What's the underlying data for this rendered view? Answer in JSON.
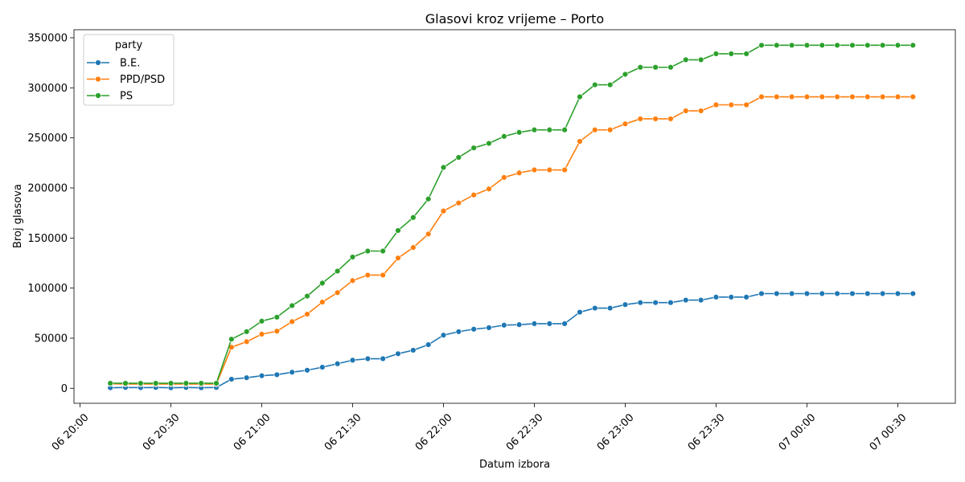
{
  "chart_data": {
    "type": "line",
    "title": "Glasovi kroz vrijeme – Porto",
    "xlabel": "Datum izbora",
    "ylabel": "Broj glasova",
    "x_range": [
      "06 19:58",
      "07 00:49"
    ],
    "ylim": [
      -15000,
      358000
    ],
    "x_ticks": [
      {
        "time": "06 20:00",
        "label": "06 20:00"
      },
      {
        "time": "06 20:30",
        "label": "06 20:30"
      },
      {
        "time": "06 21:00",
        "label": "06 21:00"
      },
      {
        "time": "06 21:30",
        "label": "06 21:30"
      },
      {
        "time": "06 22:00",
        "label": "06 22:00"
      },
      {
        "time": "06 22:30",
        "label": "06 22:30"
      },
      {
        "time": "06 23:00",
        "label": "06 23:00"
      },
      {
        "time": "06 23:30",
        "label": "06 23:30"
      },
      {
        "time": "07 00:00",
        "label": "07 00:00"
      },
      {
        "time": "07 00:30",
        "label": "07 00:30"
      }
    ],
    "y_ticks": [
      0,
      50000,
      100000,
      150000,
      200000,
      250000,
      300000,
      350000
    ],
    "legend": {
      "title": "party",
      "position": "top-left"
    },
    "x": [
      "06 20:10",
      "06 20:15",
      "06 20:20",
      "06 20:25",
      "06 20:30",
      "06 20:35",
      "06 20:40",
      "06 20:45",
      "06 20:50",
      "06 20:55",
      "06 21:00",
      "06 21:05",
      "06 21:10",
      "06 21:15",
      "06 21:20",
      "06 21:25",
      "06 21:30",
      "06 21:35",
      "06 21:40",
      "06 21:45",
      "06 21:50",
      "06 21:55",
      "06 22:00",
      "06 22:05",
      "06 22:10",
      "06 22:15",
      "06 22:20",
      "06 22:25",
      "06 22:30",
      "06 22:35",
      "06 22:40",
      "06 22:45",
      "06 22:50",
      "06 22:55",
      "06 23:00",
      "06 23:05",
      "06 23:10",
      "06 23:15",
      "06 23:20",
      "06 23:25",
      "06 23:30",
      "06 23:35",
      "06 23:40",
      "06 23:45",
      "06 23:50",
      "06 23:55",
      "07 00:00",
      "07 00:05",
      "07 00:10",
      "07 00:15",
      "07 00:20",
      "07 00:25",
      "07 00:30",
      "07 00:35"
    ],
    "series": [
      {
        "name": "B.E.",
        "color": "#1f77b4",
        "values": [
          500,
          800,
          600,
          800,
          500,
          800,
          500,
          800,
          9000,
          10500,
          12500,
          13500,
          16000,
          18000,
          21000,
          24500,
          28000,
          29500,
          29500,
          34500,
          38000,
          43500,
          53000,
          56500,
          59000,
          60500,
          63000,
          63500,
          64500,
          64500,
          64500,
          76000,
          80000,
          80000,
          83500,
          85500,
          85500,
          85500,
          88000,
          88000,
          91000,
          91000,
          91000,
          94500,
          94500,
          94500,
          94500,
          94500,
          94500,
          94500,
          94500,
          94500,
          94500,
          94500
        ]
      },
      {
        "name": "PPD/PSD",
        "color": "#ff7f0e",
        "values": [
          4500,
          4200,
          4200,
          4200,
          4200,
          4200,
          4200,
          4200,
          41000,
          46500,
          54000,
          57000,
          66500,
          74000,
          86000,
          95500,
          107500,
          113000,
          113000,
          130000,
          140500,
          154000,
          177000,
          185000,
          193000,
          199000,
          210500,
          215000,
          218000,
          218000,
          218000,
          246500,
          258000,
          258000,
          264000,
          269000,
          269000,
          269000,
          277000,
          277000,
          283000,
          283000,
          283000,
          291000,
          291000,
          291000,
          291000,
          291000,
          291000,
          291000,
          291000,
          291000,
          291000,
          291000
        ]
      },
      {
        "name": "PS",
        "color": "#2ca02c",
        "values": [
          5000,
          5000,
          5000,
          5000,
          5000,
          5000,
          5000,
          5000,
          49000,
          56500,
          67000,
          71000,
          82500,
          92000,
          105000,
          117000,
          131000,
          137000,
          137000,
          157500,
          170500,
          189000,
          220500,
          230500,
          240000,
          244500,
          251500,
          255500,
          258000,
          258000,
          258000,
          291000,
          303000,
          303000,
          313500,
          320500,
          320500,
          320500,
          328000,
          328000,
          334000,
          334000,
          334000,
          342500,
          342500,
          342500,
          342500,
          342500,
          342500,
          342500,
          342500,
          342500,
          342500,
          342500
        ]
      }
    ]
  }
}
